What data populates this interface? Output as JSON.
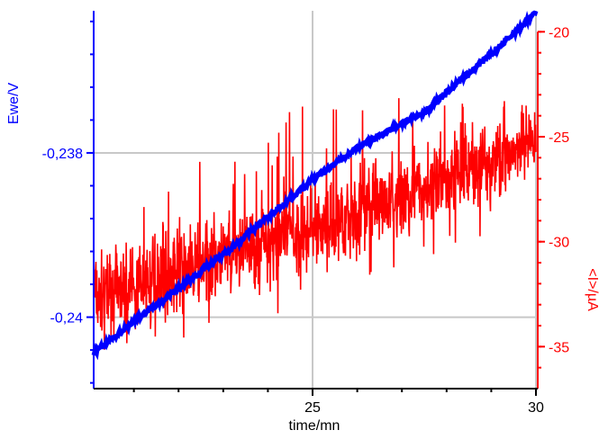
{
  "chart_data": {
    "type": "line",
    "xlabel": "time/mn",
    "x_ticks": [
      "25",
      "30"
    ],
    "xlim": [
      20.1,
      30
    ],
    "grid": true,
    "axes": {
      "left": {
        "label": "Ewe/V",
        "color": "#0000ff",
        "ticks": [
          "-0,238",
          "-0,24"
        ],
        "tick_values": [
          -0.238,
          -0.24
        ],
        "ylim": [
          -0.24087,
          -0.23627
        ]
      },
      "right": {
        "label": "<I>/µA",
        "color": "#ff0000",
        "ticks": [
          "-20",
          "-25",
          "-30",
          "-35"
        ],
        "tick_values": [
          -20,
          -25,
          -30,
          -35
        ],
        "ylim": [
          -37.0,
          -19.0
        ]
      }
    },
    "series": [
      {
        "name": "Ewe/V",
        "axis": "left",
        "color": "#0000ff",
        "x": [
          20.1,
          21,
          22,
          22.5,
          23,
          24,
          25,
          26,
          27,
          27.5,
          28,
          29,
          30
        ],
        "y": [
          -0.24044,
          -0.24005,
          -0.23965,
          -0.23944,
          -0.23924,
          -0.23878,
          -0.23833,
          -0.23794,
          -0.23764,
          -0.23751,
          -0.23726,
          -0.2368,
          -0.23629
        ]
      },
      {
        "name": "<I>/µA",
        "axis": "right",
        "color": "#ff0000",
        "x": [
          20.1,
          21,
          22,
          23,
          24,
          25,
          26,
          27,
          28,
          29,
          30
        ],
        "y_mean": [
          -32.6,
          -32.1,
          -31.4,
          -30.8,
          -30.1,
          -29.4,
          -28.6,
          -27.9,
          -27.0,
          -26.2,
          -25.4
        ],
        "y_min": [
          -36.0,
          -35.8,
          -35.0,
          -34.5,
          -34.2,
          -33.0,
          -32.2,
          -31.5,
          -30.6,
          -29.6,
          -28.5
        ],
        "y_max": [
          -28.5,
          -28.0,
          -26.5,
          -25.5,
          -23.5,
          -23.0,
          -22.5,
          -23.0,
          -23.0,
          -22.0,
          -22.0
        ]
      }
    ]
  }
}
